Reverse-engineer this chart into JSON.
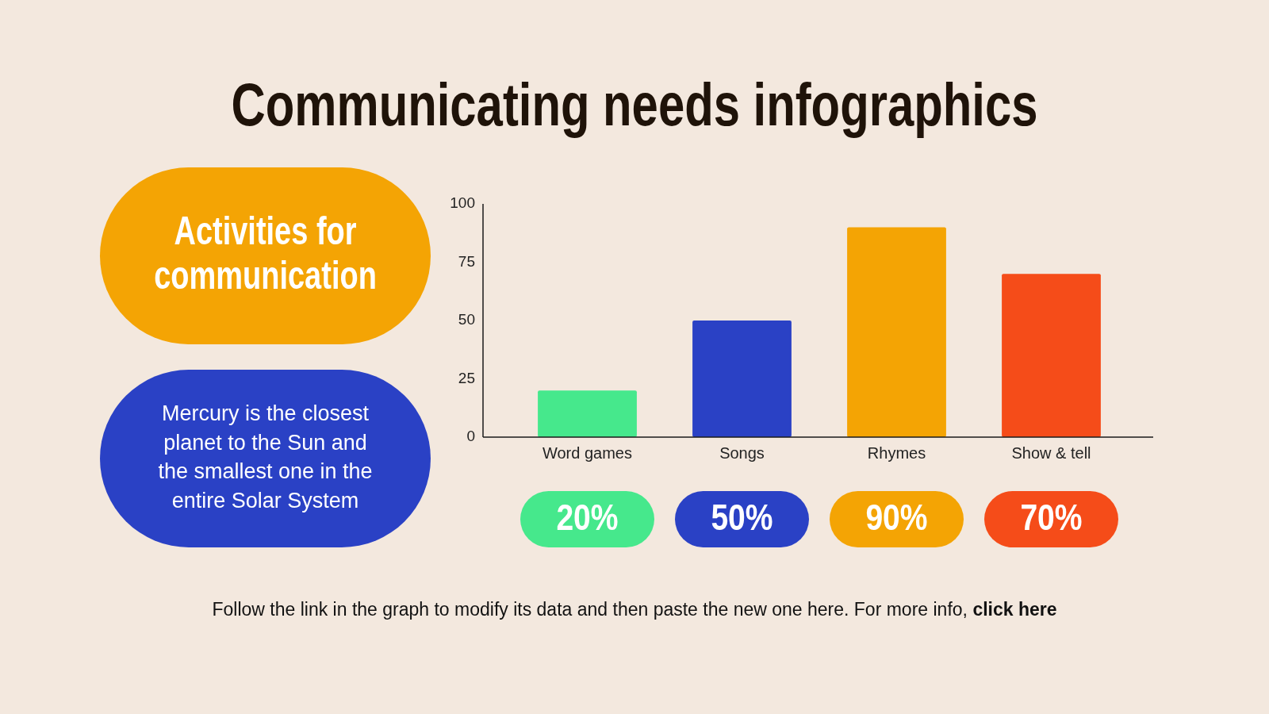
{
  "chart_data": {
    "type": "bar",
    "title": "Communicating needs infographics",
    "subtitle": "Activities for communication",
    "categories": [
      "Word games",
      "Songs",
      "Rhymes",
      "Show & tell"
    ],
    "values": [
      20,
      50,
      90,
      70
    ],
    "colors": [
      "#46e88c",
      "#2a41c5",
      "#f4a404",
      "#f54c19"
    ],
    "value_labels": [
      "20%",
      "50%",
      "90%",
      "70%"
    ],
    "ylim": [
      0,
      100
    ],
    "yticks": [
      0,
      25,
      50,
      75,
      100
    ],
    "annotations": [
      "Mercury is the closest planet to the Sun and the smallest one in the entire Solar System",
      "Follow the link in the graph to modify its data and then paste the new one here. For more info,",
      "click here"
    ]
  }
}
